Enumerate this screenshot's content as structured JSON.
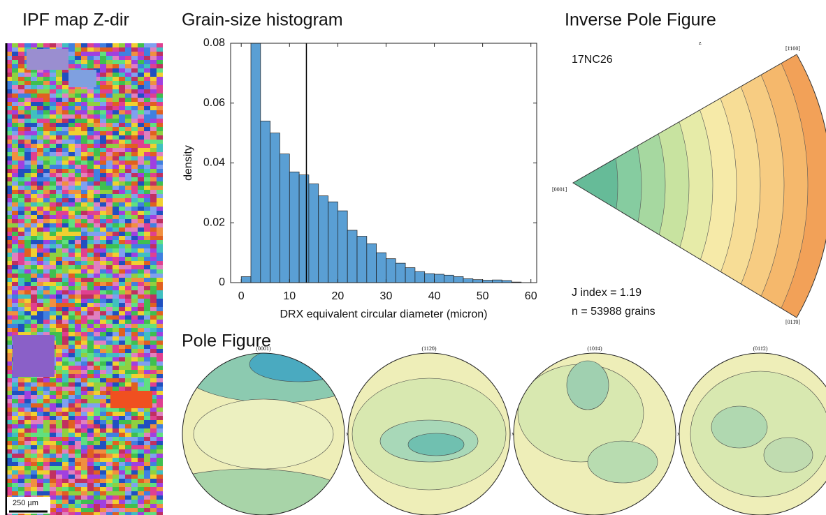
{
  "panels": {
    "ipf_map": {
      "title": "IPF map Z-dir",
      "scale_bar": "250 µm"
    },
    "inverse_pole_figure": {
      "title": "Inverse Pole Figure",
      "sample": "17NC26",
      "j_index": "J index = 1.19",
      "grains": "n = 53988 grains",
      "corners": [
        "[0001]",
        "[1̄100]",
        "[011̄0]"
      ],
      "axis": "z"
    },
    "pole_figure": {
      "title": "Pole Figure",
      "planes": [
        "(0001)",
        "(112̄0)",
        "(101̄4)",
        "(011̄2)"
      ],
      "axis": "x"
    }
  },
  "chart_data": {
    "type": "histogram",
    "title": "Grain-size histogram",
    "x_label": "DRX equivalent circular diameter (micron)",
    "y_label": "density",
    "bins": [
      0,
      2,
      4,
      6,
      8,
      10,
      12,
      14,
      16,
      18,
      20,
      22,
      24,
      26,
      28,
      30,
      32,
      34,
      36,
      38,
      40,
      42,
      44,
      46,
      48,
      50,
      52,
      54,
      56,
      58
    ],
    "values": [
      0.002,
      0.08,
      0.054,
      0.05,
      0.043,
      0.037,
      0.036,
      0.033,
      0.029,
      0.027,
      0.024,
      0.0175,
      0.0155,
      0.013,
      0.01,
      0.008,
      0.0065,
      0.005,
      0.0037,
      0.003,
      0.0028,
      0.0025,
      0.002,
      0.0013,
      0.001,
      0.0008,
      0.0009,
      0.0007,
      0.0002
    ],
    "color": "#5a9fd4",
    "vline": 13.5,
    "xlim": [
      -2.2,
      61.2
    ],
    "ylim": [
      0,
      0.08
    ],
    "xticks": [
      0,
      10,
      20,
      30,
      40,
      50,
      60
    ],
    "yticks": [
      0,
      0.02,
      0.04,
      0.06,
      0.08
    ]
  }
}
